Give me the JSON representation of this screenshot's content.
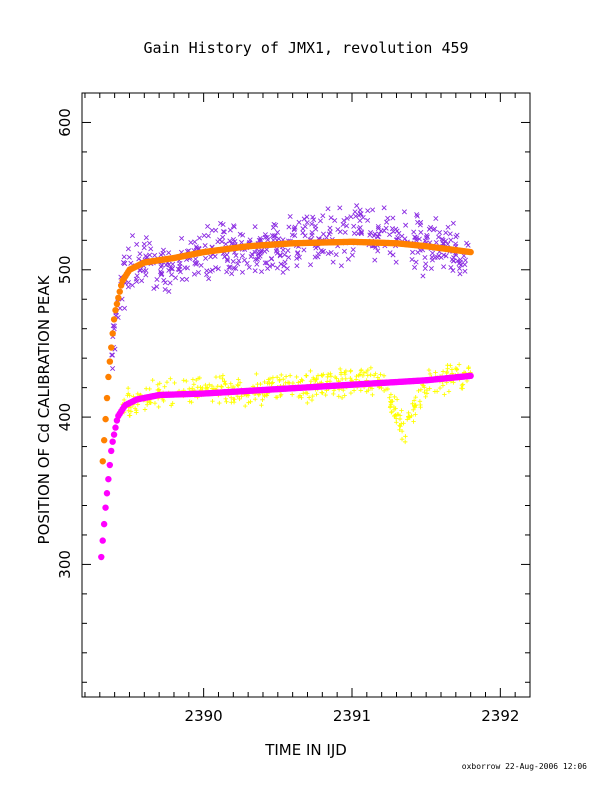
{
  "chart_data": {
    "type": "scatter",
    "title": "Gain History of JMX1, revolution 459",
    "xlabel": "TIME IN IJD",
    "ylabel": "POSITION OF Cd CALIBRATION PEAK",
    "xlim": [
      2389.18,
      2392.2
    ],
    "ylim": [
      210,
      620
    ],
    "x_ticks": [
      "2390",
      "2391",
      "2392"
    ],
    "x_tick_values": [
      2390,
      2391,
      2392
    ],
    "y_ticks": [
      "300",
      "400",
      "500",
      "600"
    ],
    "y_tick_values": [
      300,
      400,
      500,
      600
    ],
    "grid": false,
    "footer": "oxborrow 22-Aug-2006 12:06",
    "colors": {
      "purple_points": "#8a2be2",
      "orange_fit": "#ff8000",
      "yellow_points": "#ffff00",
      "magenta_fit": "#ff00ff"
    },
    "series": [
      {
        "marker": "x",
        "color": "#8a2be2",
        "x": [
          2389.38,
          2389.42,
          2389.46,
          2389.5,
          2389.55,
          2389.6,
          2389.7,
          2389.8,
          2389.9,
          2390.0,
          2390.2,
          2390.4,
          2390.6,
          2390.8,
          2391.0,
          2391.2,
          2391.4,
          2391.6,
          2391.8
        ],
        "y": [
          440,
          470,
          493,
          502,
          506,
          505,
          502,
          498,
          508,
          512,
          515,
          516,
          520,
          520,
          525,
          522,
          518,
          515,
          510
        ]
      },
      {
        "marker": "line",
        "color": "#ff8000",
        "x": [
          2389.32,
          2389.36,
          2389.4,
          2389.45,
          2389.5,
          2389.6,
          2389.8,
          2390.0,
          2390.3,
          2390.6,
          2391.0,
          2391.3,
          2391.5,
          2391.8
        ],
        "y": [
          370,
          430,
          470,
          492,
          500,
          505,
          508,
          512,
          516,
          518,
          519,
          518,
          516,
          512
        ]
      },
      {
        "marker": "+",
        "color": "#ffff00",
        "x": [
          2389.45,
          2389.5,
          2389.6,
          2389.7,
          2389.8,
          2390.0,
          2390.2,
          2390.4,
          2390.6,
          2390.8,
          2391.0,
          2391.2,
          2391.35,
          2391.5,
          2391.7,
          2391.8
        ],
        "y": [
          405,
          410,
          414,
          415,
          417,
          418,
          418,
          419,
          420,
          422,
          423,
          425,
          390,
          425,
          427,
          428
        ]
      },
      {
        "marker": "line",
        "color": "#ff00ff",
        "x": [
          2389.31,
          2389.34,
          2389.38,
          2389.42,
          2389.47,
          2389.55,
          2389.7,
          2390.0,
          2390.5,
          2391.0,
          2391.5,
          2391.8
        ],
        "y": [
          305,
          340,
          380,
          400,
          408,
          412,
          415,
          416,
          419,
          422,
          425,
          428
        ]
      }
    ]
  }
}
